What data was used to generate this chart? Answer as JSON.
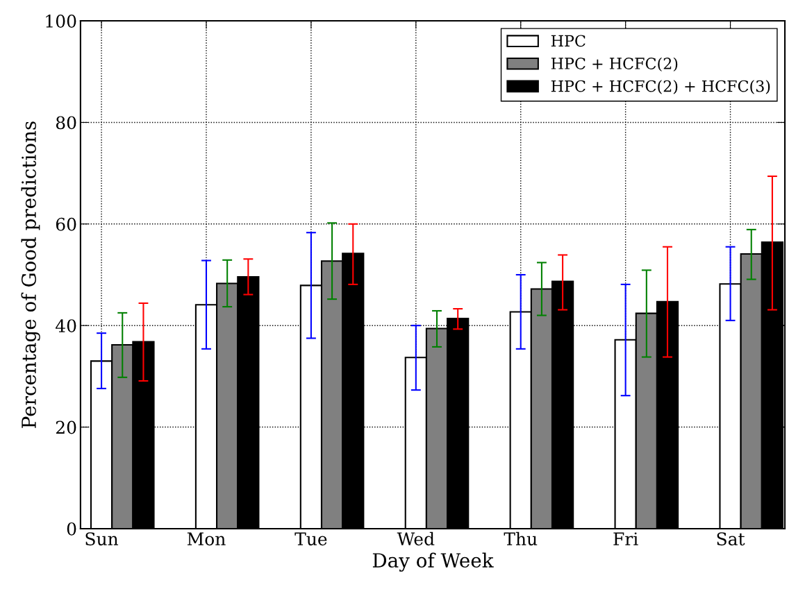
{
  "chart_data": {
    "type": "bar",
    "xlabel": "Day of Week",
    "ylabel": "Percentage of Good predictions",
    "categories": [
      "Sun",
      "Mon",
      "Tue",
      "Wed",
      "Thu",
      "Fri",
      "Sat"
    ],
    "series": [
      {
        "name": "HPC",
        "color": "#ffffff",
        "values": [
          33.0,
          44.1,
          47.9,
          33.7,
          42.7,
          37.2,
          48.2
        ],
        "errors": [
          [
            27.6,
            38.5
          ],
          [
            35.4,
            52.8
          ],
          [
            37.5,
            58.3
          ],
          [
            27.3,
            40.0
          ],
          [
            35.4,
            50.0
          ],
          [
            26.2,
            48.1
          ],
          [
            41.0,
            55.5
          ]
        ]
      },
      {
        "name": "HPC + HCFC(2)",
        "color": "#808080",
        "values": [
          36.2,
          48.3,
          52.7,
          39.4,
          47.2,
          42.4,
          54.1
        ],
        "errors": [
          [
            29.8,
            42.5
          ],
          [
            43.7,
            52.9
          ],
          [
            45.2,
            60.2
          ],
          [
            35.8,
            42.9
          ],
          [
            42.0,
            52.4
          ],
          [
            33.8,
            50.9
          ],
          [
            49.1,
            58.9
          ]
        ]
      },
      {
        "name": "HPC + HCFC(2) + HCFC(3)",
        "color": "#000000",
        "values": [
          36.8,
          49.6,
          54.2,
          41.4,
          48.7,
          44.7,
          56.4
        ],
        "errors": [
          [
            29.1,
            44.4
          ],
          [
            46.1,
            53.1
          ],
          [
            48.1,
            60.0
          ],
          [
            39.3,
            43.3
          ],
          [
            43.1,
            53.9
          ],
          [
            33.8,
            55.5
          ],
          [
            43.1,
            69.4
          ]
        ]
      }
    ],
    "ylim": [
      0,
      100
    ],
    "yticks": [
      0,
      20,
      40,
      60,
      80,
      100
    ],
    "grid": true,
    "legend": "top right"
  }
}
